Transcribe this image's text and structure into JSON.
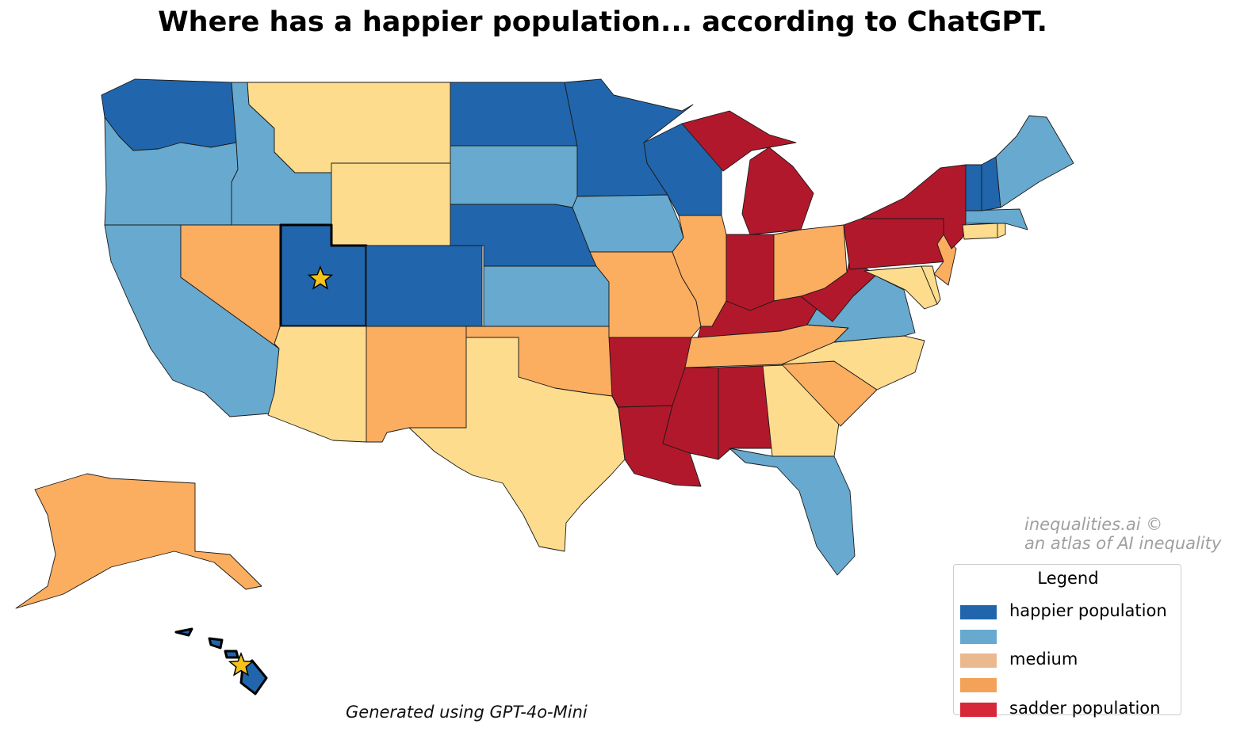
{
  "title": "Where has a happier population... according to ChatGPT.",
  "footer": "Generated using GPT-4o-Mini",
  "watermark": {
    "line1": "inequalities.ai ©",
    "line2": "an atlas of AI inequality"
  },
  "colors": {
    "happier": "#2166ac",
    "happy": "#67a9cf",
    "medium": "#fddc8e",
    "sad": "#fbad60",
    "sadder": "#b2182b"
  },
  "legend": {
    "title": "Legend",
    "items": [
      {
        "label": "happier population",
        "color": "#2166ac"
      },
      {
        "label": "",
        "color": "#67a9cf"
      },
      {
        "label": "medium",
        "color": "#ebb98f"
      },
      {
        "label": "",
        "color": "#f4a259"
      },
      {
        "label": "sadder population",
        "color": "#d62839"
      }
    ]
  },
  "highlighted_states": [
    "UT",
    "HI"
  ],
  "marker_icon": "star-icon",
  "states": {
    "WA": "happier",
    "OR": "happy",
    "CA": "happy",
    "ID": "happy",
    "NV": "sad",
    "MT": "medium",
    "WY": "medium",
    "UT": "happier",
    "AZ": "medium",
    "CO": "happier",
    "NM": "sad",
    "ND": "happier",
    "SD": "happy",
    "NE": "happier",
    "KS": "happy",
    "OK": "sad",
    "TX": "medium",
    "MN": "happier",
    "IA": "happy",
    "MO": "sad",
    "AR": "sadder",
    "LA": "sadder",
    "WI": "happier",
    "IL": "sad",
    "MI": "sadder",
    "IN": "sadder",
    "OH": "sad",
    "KY": "sadder",
    "TN": "sad",
    "MS": "sadder",
    "AL": "sadder",
    "GA": "medium",
    "FL": "happy",
    "SC": "sad",
    "NC": "medium",
    "VA": "happy",
    "WV": "sadder",
    "MD": "medium",
    "DE": "medium",
    "PA": "sadder",
    "NJ": "sad",
    "NY": "sadder",
    "CT": "medium",
    "RI": "medium",
    "MA": "happy",
    "VT": "happier",
    "NH": "happier",
    "ME": "happy",
    "AK": "sad",
    "HI": "happier"
  }
}
